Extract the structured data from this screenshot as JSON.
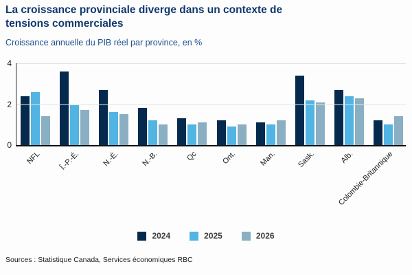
{
  "header": {
    "title": "La croissance provinciale diverge dans un contexte de tensions commerciales",
    "subtitle": "Croissance annuelle du PIB réel par province, en %"
  },
  "chart_data": {
    "type": "bar",
    "title": "La croissance provinciale diverge dans un contexte de tensions commerciales",
    "subtitle": "Croissance annuelle du PIB réel par province, en %",
    "categories": [
      "NFL",
      "Î.-P.-É.",
      "N.-É.",
      "N.-B.",
      "Qc",
      "Ont.",
      "Man.",
      "Sask.",
      "Alb.",
      "Colombie-Britannique"
    ],
    "series": [
      {
        "name": "2024",
        "color": "#062a4e",
        "values": [
          2.4,
          3.6,
          2.7,
          1.8,
          1.3,
          1.2,
          1.1,
          3.4,
          2.7,
          1.2
        ]
      },
      {
        "name": "2025",
        "color": "#52b4e2",
        "values": [
          2.6,
          2.0,
          1.6,
          1.2,
          1.0,
          0.9,
          1.0,
          2.2,
          2.4,
          1.0
        ]
      },
      {
        "name": "2026",
        "color": "#8bafc2",
        "values": [
          1.4,
          1.7,
          1.5,
          1.0,
          1.1,
          1.0,
          1.2,
          2.1,
          2.3,
          1.4
        ]
      }
    ],
    "ylim": [
      0,
      4
    ],
    "yticks": [
      0,
      2,
      4
    ],
    "grid": "horizontal",
    "legend_position": "bottom",
    "xlabel": "",
    "ylabel": ""
  },
  "colors": {
    "title_text": "#11376e",
    "subtitle_text": "#1d4e8f",
    "axis_text": "#1a1a1a",
    "gridline": "#e3e3e3"
  },
  "footer": {
    "source": "Sources : Statistique Canada, Services économiques RBC"
  }
}
